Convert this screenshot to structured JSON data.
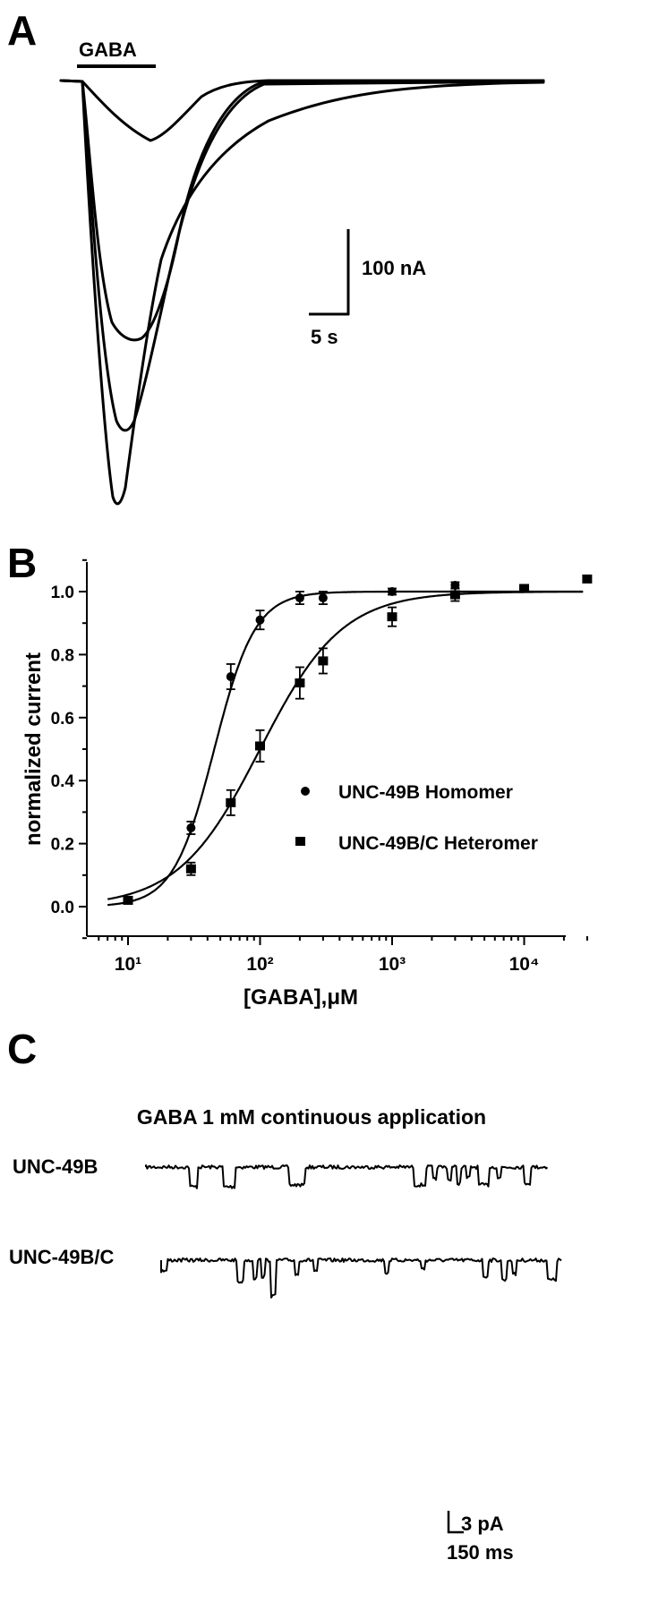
{
  "panel_a": {
    "letter": "A",
    "stimulus_label": "GABA",
    "scale_current": "100 nA",
    "scale_time": "5 s"
  },
  "panel_b": {
    "letter": "B"
  },
  "panel_c": {
    "letter": "C",
    "title": "GABA 1 mM continuous application",
    "trace_labels": [
      "UNC-49B",
      "UNC-49B/C"
    ],
    "scale_current": "3 pA",
    "scale_time": "150 ms"
  },
  "chart_data": {
    "type": "scatter",
    "xscale": "log",
    "xlabel": "[GABA],μM",
    "ylabel": "normalized current",
    "xlim": [
      6,
      30000
    ],
    "ylim": [
      -0.1,
      1.1
    ],
    "x_tick_labels": [
      "10¹",
      "10²",
      "10³",
      "10⁴"
    ],
    "y_tick_labels": [
      "0.0",
      "0.2",
      "0.4",
      "0.6",
      "0.8",
      "1.0"
    ],
    "legend_position": "center-right",
    "series": [
      {
        "name": "UNC-49B Homomer",
        "marker": "circle",
        "x": [
          30,
          60,
          100,
          200,
          300,
          1000,
          3000
        ],
        "y": [
          0.25,
          0.73,
          0.91,
          0.98,
          0.98,
          1.0,
          1.02
        ],
        "err": [
          0.02,
          0.04,
          0.03,
          0.02,
          0.02,
          0.01,
          0.01
        ],
        "fit": {
          "ec50": 45,
          "hill": 2.8
        }
      },
      {
        "name": "UNC-49B/C Heteromer",
        "marker": "square",
        "x": [
          10,
          30,
          60,
          100,
          200,
          300,
          1000,
          3000,
          10000,
          30000
        ],
        "y": [
          0.02,
          0.12,
          0.33,
          0.51,
          0.71,
          0.78,
          0.92,
          0.99,
          1.01,
          1.04
        ],
        "err": [
          0.01,
          0.02,
          0.04,
          0.05,
          0.05,
          0.04,
          0.03,
          0.02,
          0.01,
          0.01
        ],
        "fit": {
          "ec50": 100,
          "hill": 1.4
        }
      }
    ]
  }
}
